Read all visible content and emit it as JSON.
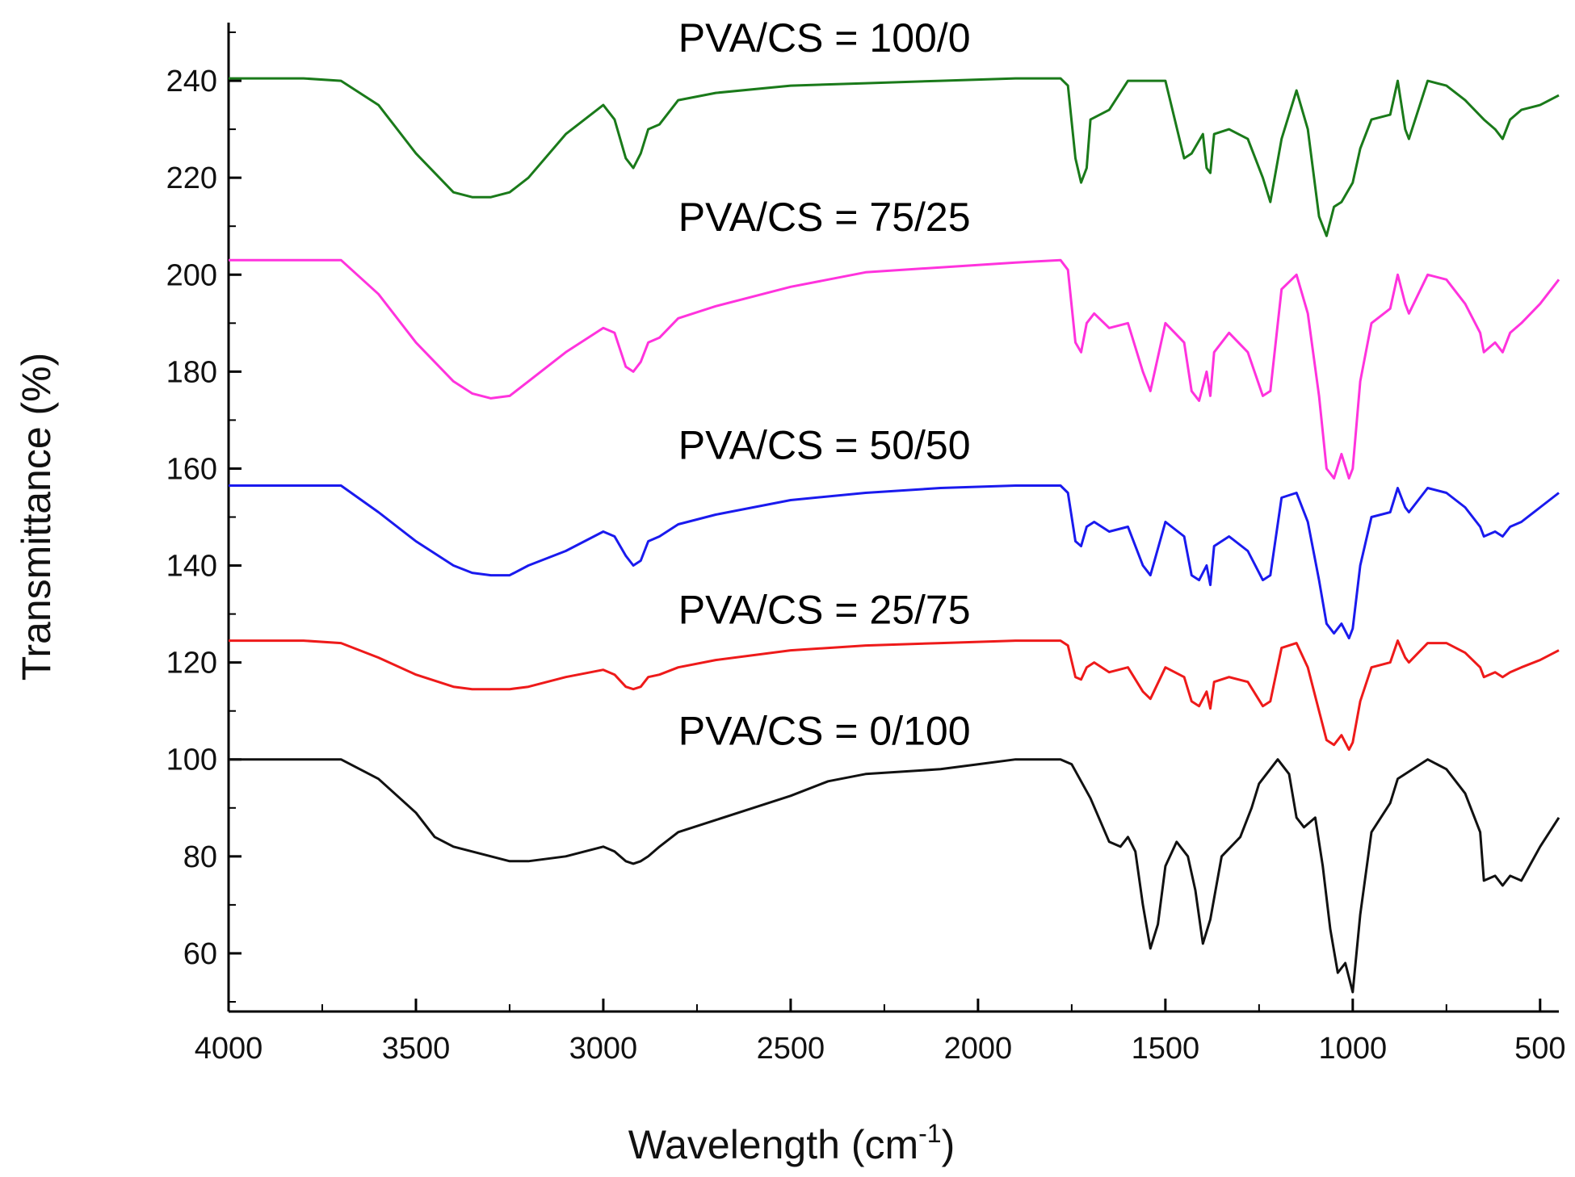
{
  "chart_data": {
    "type": "line",
    "title": "",
    "xlabel": "Wavelength (cm",
    "xlabel_sup": "-1",
    "xlabel_close": ")",
    "ylabel": "Transmittance (%)",
    "xlim": [
      4000,
      450
    ],
    "ylim": [
      48,
      252
    ],
    "x_ticks": [
      4000,
      3500,
      3000,
      2500,
      2000,
      1500,
      1000,
      500
    ],
    "x_tick_labels": [
      "4000",
      "3500",
      "3000",
      "2500",
      "2000",
      "1500",
      "1000",
      "500"
    ],
    "y_ticks": [
      60,
      80,
      100,
      120,
      140,
      160,
      180,
      200,
      220,
      240
    ],
    "y_tick_labels": [
      "60",
      "80",
      "100",
      "120",
      "140",
      "160",
      "180",
      "200",
      "220",
      "240"
    ],
    "grid": false,
    "series": [
      {
        "name": "PVA/CS = 100/0",
        "color": "#1a7a1a",
        "label_pos": [
          2800,
          246
        ],
        "x": [
          4000,
          3800,
          3700,
          3600,
          3500,
          3400,
          3350,
          3300,
          3250,
          3200,
          3100,
          3000,
          2970,
          2940,
          2920,
          2900,
          2880,
          2850,
          2800,
          2700,
          2500,
          2300,
          2100,
          1900,
          1780,
          1760,
          1740,
          1725,
          1710,
          1700,
          1650,
          1600,
          1500,
          1450,
          1430,
          1400,
          1390,
          1380,
          1370,
          1330,
          1280,
          1240,
          1220,
          1190,
          1150,
          1120,
          1090,
          1070,
          1050,
          1030,
          1000,
          980,
          950,
          900,
          880,
          860,
          850,
          800,
          750,
          700,
          650,
          620,
          600,
          580,
          550,
          500,
          450
        ],
        "y": [
          240.5,
          240.5,
          240,
          235,
          225,
          217,
          216,
          216,
          217,
          220,
          229,
          235,
          232,
          224,
          222,
          225,
          230,
          231,
          236,
          237.5,
          239,
          239.5,
          240,
          240.5,
          240.5,
          239,
          224,
          219,
          222,
          232,
          234,
          240,
          240,
          224,
          225,
          229,
          222,
          221,
          229,
          230,
          228,
          220,
          215,
          228,
          238,
          230,
          212,
          208,
          214,
          215,
          219,
          226,
          232,
          233,
          240,
          230,
          228,
          240,
          239,
          236,
          232,
          230,
          228,
          232,
          234,
          235,
          237
        ]
      },
      {
        "name": "PVA/CS = 75/25",
        "color": "#ff33dd",
        "label_pos": [
          2800,
          209
        ],
        "x": [
          4000,
          3800,
          3700,
          3600,
          3500,
          3400,
          3350,
          3300,
          3250,
          3200,
          3100,
          3000,
          2970,
          2940,
          2920,
          2900,
          2880,
          2850,
          2800,
          2700,
          2500,
          2300,
          2100,
          1900,
          1780,
          1760,
          1740,
          1725,
          1710,
          1690,
          1650,
          1600,
          1560,
          1540,
          1500,
          1450,
          1430,
          1410,
          1390,
          1380,
          1370,
          1330,
          1280,
          1240,
          1220,
          1190,
          1150,
          1120,
          1090,
          1070,
          1050,
          1030,
          1010,
          1000,
          980,
          950,
          900,
          880,
          860,
          850,
          800,
          750,
          700,
          660,
          650,
          620,
          600,
          580,
          550,
          500,
          450
        ],
        "y": [
          203,
          203,
          203,
          196,
          186,
          178,
          175.5,
          174.5,
          175,
          178,
          184,
          189,
          188,
          181,
          180,
          182,
          186,
          187,
          191,
          193.5,
          197.5,
          200.5,
          201.5,
          202.5,
          203,
          201,
          186,
          184,
          190,
          192,
          189,
          190,
          180,
          176,
          190,
          186,
          176,
          174,
          180,
          175,
          184,
          188,
          184,
          175,
          176,
          197,
          200,
          192,
          175,
          160,
          158,
          163,
          158,
          160,
          178,
          190,
          193,
          200,
          194,
          192,
          200,
          199,
          194,
          188,
          184,
          186,
          184,
          188,
          190,
          194,
          199
        ]
      },
      {
        "name": "PVA/CS = 50/50",
        "color": "#1a1aee",
        "label_pos": [
          2800,
          162
        ],
        "x": [
          4000,
          3800,
          3700,
          3600,
          3500,
          3400,
          3350,
          3300,
          3250,
          3200,
          3100,
          3000,
          2970,
          2940,
          2920,
          2900,
          2880,
          2850,
          2800,
          2700,
          2500,
          2300,
          2100,
          1900,
          1780,
          1760,
          1740,
          1725,
          1710,
          1690,
          1650,
          1600,
          1560,
          1540,
          1500,
          1450,
          1430,
          1410,
          1390,
          1380,
          1370,
          1330,
          1280,
          1240,
          1220,
          1190,
          1150,
          1120,
          1090,
          1070,
          1050,
          1030,
          1010,
          1000,
          980,
          950,
          900,
          880,
          860,
          850,
          800,
          750,
          700,
          660,
          650,
          620,
          600,
          580,
          550,
          500,
          450
        ],
        "y": [
          156.5,
          156.5,
          156.5,
          151,
          145,
          140,
          138.5,
          138,
          138,
          140,
          143,
          147,
          146,
          142,
          140,
          141,
          145,
          146,
          148.5,
          150.5,
          153.5,
          155,
          156,
          156.5,
          156.5,
          155,
          145,
          144,
          148,
          149,
          147,
          148,
          140,
          138,
          149,
          146,
          138,
          137,
          140,
          136,
          144,
          146,
          143,
          137,
          138,
          154,
          155,
          149,
          137,
          128,
          126,
          128,
          125,
          127,
          140,
          150,
          151,
          156,
          152,
          151,
          156,
          155,
          152,
          148,
          146,
          147,
          146,
          148,
          149,
          152,
          155
        ]
      },
      {
        "name": "PVA/CS = 25/75",
        "color": "#ee1a1a",
        "label_pos": [
          2800,
          128
        ],
        "x": [
          4000,
          3800,
          3700,
          3600,
          3500,
          3400,
          3350,
          3300,
          3250,
          3200,
          3100,
          3000,
          2970,
          2940,
          2920,
          2900,
          2880,
          2850,
          2800,
          2700,
          2500,
          2300,
          2100,
          1900,
          1780,
          1760,
          1740,
          1725,
          1710,
          1690,
          1650,
          1600,
          1560,
          1540,
          1500,
          1450,
          1430,
          1410,
          1390,
          1380,
          1370,
          1330,
          1280,
          1240,
          1220,
          1190,
          1150,
          1120,
          1090,
          1070,
          1050,
          1030,
          1010,
          1000,
          980,
          950,
          900,
          880,
          860,
          850,
          800,
          750,
          700,
          660,
          650,
          620,
          600,
          580,
          550,
          500,
          450
        ],
        "y": [
          124.5,
          124.5,
          124,
          121,
          117.5,
          115,
          114.5,
          114.5,
          114.5,
          115,
          117,
          118.5,
          117.5,
          115,
          114.5,
          115,
          117,
          117.5,
          119,
          120.5,
          122.5,
          123.5,
          124,
          124.5,
          124.5,
          123.5,
          117,
          116.5,
          119,
          120,
          118,
          119,
          114,
          112.5,
          119,
          117,
          112,
          111,
          114,
          110.5,
          116,
          117,
          116,
          111,
          112,
          123,
          124,
          119,
          110,
          104,
          103,
          105,
          102,
          103.5,
          112,
          119,
          120,
          124.5,
          121,
          120,
          124,
          124,
          122,
          119,
          117,
          118,
          117,
          118,
          119,
          120.5,
          122.5
        ]
      },
      {
        "name": "PVA/CS = 0/100",
        "color": "#111111",
        "label_pos": [
          2800,
          103
        ],
        "x": [
          4000,
          3800,
          3700,
          3600,
          3500,
          3450,
          3400,
          3300,
          3250,
          3200,
          3100,
          3000,
          2970,
          2940,
          2920,
          2900,
          2880,
          2850,
          2800,
          2700,
          2600,
          2500,
          2400,
          2300,
          2100,
          2000,
          1900,
          1780,
          1750,
          1700,
          1650,
          1620,
          1600,
          1580,
          1560,
          1540,
          1520,
          1500,
          1470,
          1440,
          1420,
          1400,
          1380,
          1350,
          1300,
          1270,
          1250,
          1200,
          1170,
          1150,
          1130,
          1100,
          1080,
          1060,
          1040,
          1020,
          1000,
          980,
          950,
          900,
          880,
          860,
          800,
          750,
          700,
          660,
          650,
          620,
          600,
          580,
          550,
          500,
          450
        ],
        "y": [
          100,
          100,
          100,
          96,
          89,
          84,
          82,
          80,
          79,
          79,
          80,
          82,
          81,
          79,
          78.5,
          79,
          80,
          82,
          85,
          87.5,
          90,
          92.5,
          95.5,
          97,
          98,
          99,
          100,
          100,
          99,
          92,
          83,
          82,
          84,
          81,
          70,
          61,
          66,
          78,
          83,
          80,
          73,
          62,
          67,
          80,
          84,
          90,
          95,
          100,
          97,
          88,
          86,
          88,
          78,
          65,
          56,
          58,
          52,
          68,
          85,
          91,
          96,
          97,
          100,
          98,
          93,
          85,
          75,
          76,
          74,
          76,
          75,
          82,
          88
        ]
      }
    ]
  }
}
